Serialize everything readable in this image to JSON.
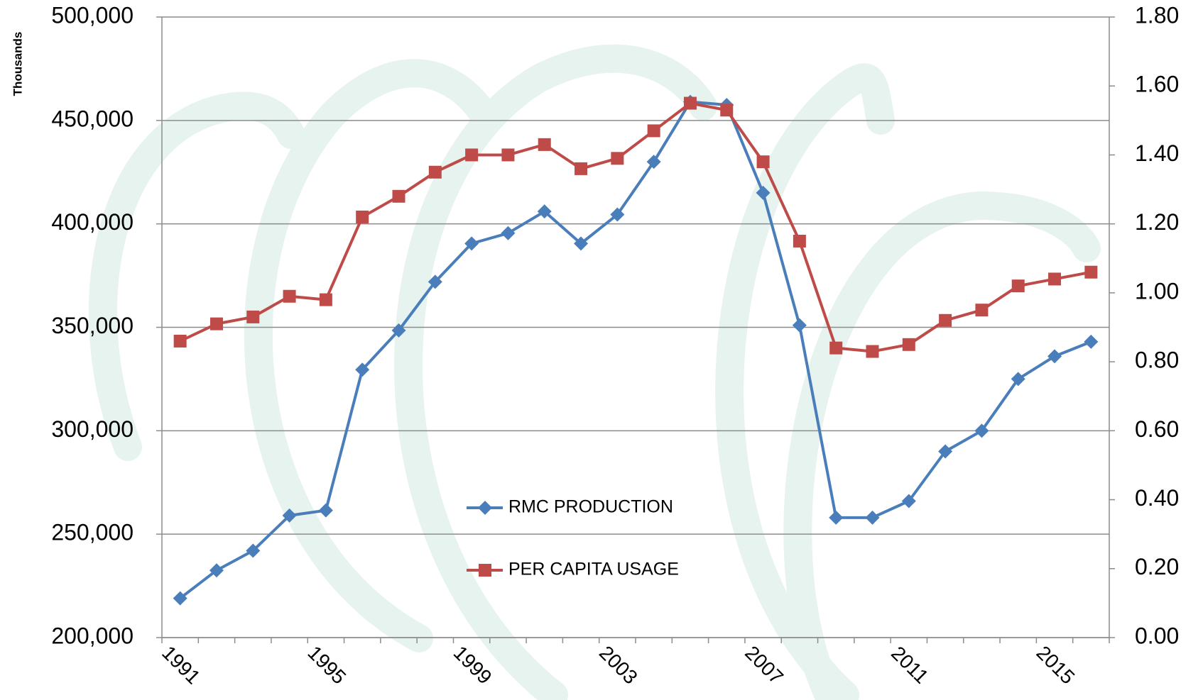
{
  "chart_data": {
    "type": "line",
    "y_axis_label": "Thousands",
    "categories": [
      "1991",
      null,
      null,
      null,
      "1995",
      null,
      null,
      null,
      "1999",
      null,
      null,
      null,
      "2003",
      null,
      null,
      null,
      "2007",
      null,
      null,
      null,
      "2011",
      null,
      null,
      null,
      "2015",
      null
    ],
    "series": [
      {
        "name": "RMC PRODUCTION",
        "color": "#4a7ebb",
        "marker": "diamond",
        "values": [
          219000,
          232500,
          242000,
          259000,
          261500,
          329500,
          348500,
          372000,
          390500,
          395500,
          406000,
          390500,
          404500,
          430000,
          459000,
          457500,
          415000,
          351000,
          258000,
          258000,
          266000,
          290000,
          300000,
          325000,
          336000,
          343000
        ]
      },
      {
        "name": "PER CAPITA USAGE",
        "color": "#be4b48",
        "marker": "square",
        "axis": "y2",
        "values": [
          0.86,
          0.91,
          0.93,
          0.99,
          0.98,
          1.22,
          1.28,
          1.35,
          1.4,
          1.4,
          1.43,
          1.36,
          1.39,
          1.47,
          1.55,
          1.53,
          1.38,
          1.15,
          0.84,
          0.83,
          0.85,
          0.92,
          0.95,
          1.02,
          1.04,
          1.06
        ]
      }
    ],
    "ylim": [
      200000,
      500000
    ],
    "yticks": [
      {
        "value": 200000,
        "label": "200,000"
      },
      {
        "value": 250000,
        "label": "250,000"
      },
      {
        "value": 300000,
        "label": "300,000"
      },
      {
        "value": 350000,
        "label": "350,000"
      },
      {
        "value": 400000,
        "label": "400,000"
      },
      {
        "value": 450000,
        "label": "450,000"
      },
      {
        "value": 500000,
        "label": "500,000"
      }
    ],
    "y2lim": [
      0,
      1.8
    ],
    "y2ticks": [
      {
        "value": 0,
        "label": "0.00"
      },
      {
        "value": 0.2,
        "label": "0.20"
      },
      {
        "value": 0.4,
        "label": "0.40"
      },
      {
        "value": 0.6,
        "label": "0.60"
      },
      {
        "value": 0.8,
        "label": "0.80"
      },
      {
        "value": 1.0,
        "label": "1.00"
      },
      {
        "value": 1.2,
        "label": "1.20"
      },
      {
        "value": 1.4,
        "label": "1.40"
      },
      {
        "value": 1.6,
        "label": "1.60"
      },
      {
        "value": 1.8,
        "label": "1.80"
      }
    ],
    "grid": true
  }
}
